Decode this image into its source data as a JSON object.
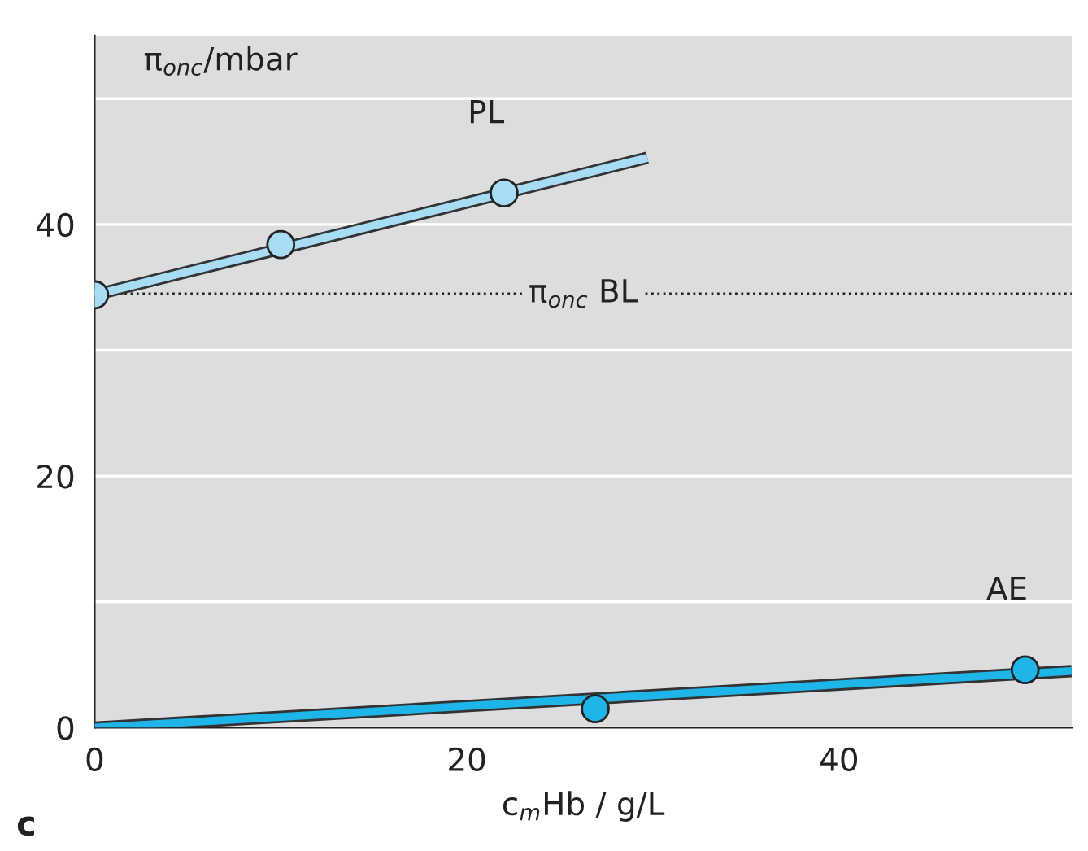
{
  "chart_data": {
    "type": "line",
    "xlabel": "c$_{m}$Hb / g/L",
    "ylabel": "π$_{onc}$/mbar",
    "xlim": [
      0,
      52.5
    ],
    "ylim": [
      0,
      55
    ],
    "xticks": [
      0,
      20,
      40
    ],
    "yticks": [
      0,
      {
        "value": 10,
        "label": null
      },
      20,
      {
        "value": 30,
        "label": null
      },
      40,
      {
        "value": 50,
        "label": null
      }
    ],
    "grid": "y",
    "series": [
      {
        "name": "PL",
        "type": "scatter",
        "marker": "circle",
        "color": "#a8dcf5",
        "x": [
          0,
          10,
          22
        ],
        "values": [
          34.4,
          38.4,
          42.5
        ]
      },
      {
        "color": "#a8dcf5",
        "x": [
          0,
          29.7
        ],
        "values": [
          34.4,
          45.3
        ]
      },
      {
        "name": "AE",
        "type": "scatter",
        "marker": "circle",
        "color": "#1fb5e8",
        "x": [
          26.9,
          50
        ],
        "values": [
          1.5,
          4.6
        ]
      },
      {
        "color": "#1fb5e8",
        "x": [
          0,
          52.5
        ],
        "values": [
          0,
          4.5
        ]
      }
    ],
    "ref_lines": [
      {
        "axis": "y",
        "value": 34.5,
        "label": "π$_{onc}$ BL",
        "color": "#222222",
        "line_style": "dotted"
      }
    ],
    "annotations": [
      "c"
    ]
  }
}
